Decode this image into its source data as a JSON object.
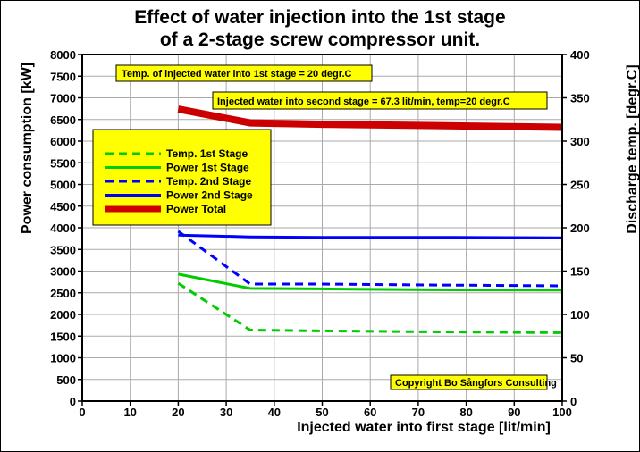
{
  "chart_data": {
    "type": "line",
    "title_line1": "Effect of water injection into the 1st stage",
    "title_line2": "of a 2-stage screw compressor unit.",
    "xlabel": "Injected water into first stage [lit/min]",
    "ylabel_left": "Power consumption [kW]",
    "ylabel_right": "Discharge temp. [degr.C]",
    "xlim": [
      0,
      100
    ],
    "ylim_left": [
      0,
      8000
    ],
    "ylim_right": [
      0,
      400
    ],
    "x_ticks": [
      "0",
      "10",
      "20",
      "30",
      "40",
      "50",
      "60",
      "70",
      "80",
      "90",
      "100"
    ],
    "y_ticks_left": [
      "0",
      "500",
      "1000",
      "1500",
      "2000",
      "2500",
      "3000",
      "3500",
      "4000",
      "4500",
      "5000",
      "5500",
      "6000",
      "6500",
      "7000",
      "7500",
      "8000"
    ],
    "y_ticks_right": [
      "0",
      "50",
      "100",
      "150",
      "200",
      "250",
      "300",
      "350",
      "400"
    ],
    "grid": true,
    "legend_position": "top-left",
    "annotations": [
      "Temp. of injected water into 1st stage = 20 degr.C",
      "Injected water into second stage = 67.3 lit/min, temp=20 degr.C",
      "Copyright Bo Sångfors Consulting"
    ],
    "series": [
      {
        "name": "Temp. 1st Stage",
        "axis": "right",
        "style": "dashed",
        "color": "#00cc00",
        "x": [
          20,
          35,
          50,
          72,
          100
        ],
        "y": [
          136,
          82,
          81,
          80,
          79
        ]
      },
      {
        "name": "Power 1st Stage",
        "axis": "left",
        "style": "solid",
        "color": "#00cc00",
        "x": [
          20,
          35,
          50,
          72,
          100
        ],
        "y": [
          2930,
          2600,
          2590,
          2570,
          2560
        ]
      },
      {
        "name": "Temp. 2nd Stage",
        "axis": "right",
        "style": "dashed",
        "color": "#0000ff",
        "x": [
          20,
          35,
          50,
          72,
          100
        ],
        "y": [
          196,
          135,
          135,
          134,
          133
        ]
      },
      {
        "name": "Power 2nd Stage",
        "axis": "left",
        "style": "solid",
        "color": "#0000ff",
        "x": [
          20,
          35,
          50,
          72,
          100
        ],
        "y": [
          3830,
          3790,
          3780,
          3780,
          3770
        ]
      },
      {
        "name": "Power Total",
        "axis": "left",
        "style": "thick",
        "color": "#cc0000",
        "x": [
          20,
          35,
          50,
          72,
          100
        ],
        "y": [
          6740,
          6420,
          6390,
          6360,
          6320
        ]
      }
    ]
  },
  "colors": {
    "plot_background": "#ffffff",
    "grid": "#aaaaaa",
    "box_fill": "#ffff00"
  }
}
